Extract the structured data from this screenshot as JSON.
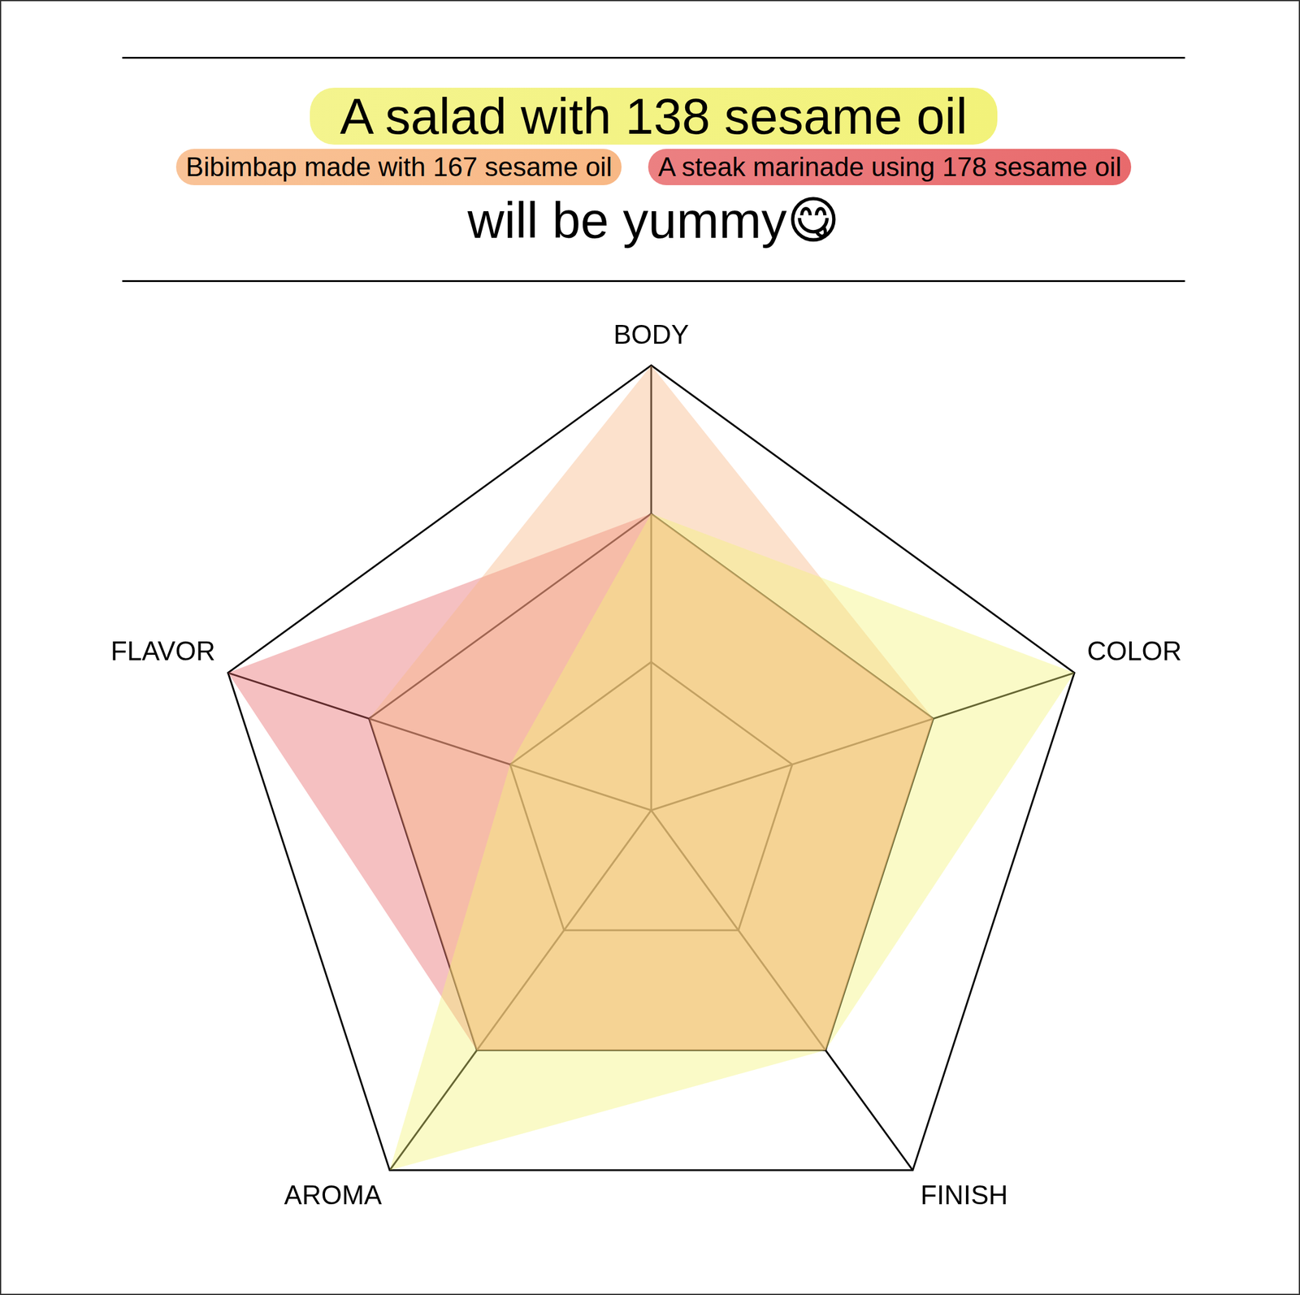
{
  "chart_data": {
    "type": "radar",
    "subtitle": "will be yummy😋",
    "categories": [
      "BODY",
      "COLOR",
      "FINISH",
      "AROMA",
      "FLAVOR"
    ],
    "series": [
      {
        "name": "A salad with 138 sesame oil",
        "color": "#f2f27a",
        "values": [
          2,
          3,
          2,
          3,
          1
        ]
      },
      {
        "name": "Bibimbap made with 167 sesame oil",
        "color": "#f8b885",
        "values": [
          3,
          2,
          2,
          2,
          2
        ]
      },
      {
        "name": "A steak marinade using 178 sesame oil",
        "color": "#e86a6c",
        "values": [
          2,
          2,
          2,
          2,
          3
        ]
      }
    ],
    "ylim": [
      0,
      3
    ],
    "yticks": [
      0,
      1,
      2,
      3
    ],
    "grid": true,
    "tick_labels": false
  }
}
